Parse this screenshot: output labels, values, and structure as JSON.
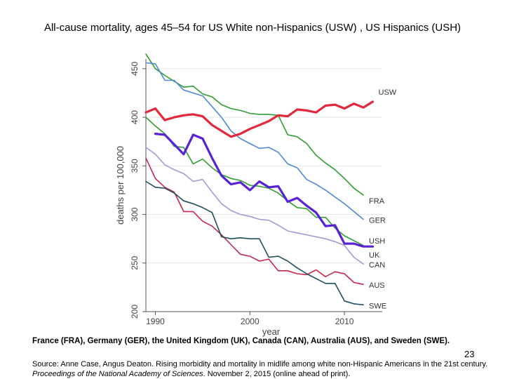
{
  "title": "All-cause mortality, ages 45–54 for US White non-Hispanics (USW) , US Hispanics (USH)",
  "caption": "France (FRA), Germany (GER), the United Kingdom (UK), Canada (CAN), Australia (AUS), and Sweden (SWE).",
  "page_number": "23",
  "source": {
    "prefix": "Source: Anne Case, Angus Deaton. Rising morbidity and mortality in midlife among white non-Hispanic Americans in the 21st century. ",
    "journal": "Proceedings of the National Academy of Sciences",
    "suffix": ". November 2, 2015 (online ahead of print)."
  },
  "chart_data": {
    "type": "line",
    "xlabel": "year",
    "ylabel": "deaths per 100,000",
    "xlim": [
      1989,
      2014
    ],
    "ylim": [
      200,
      460
    ],
    "x_ticks": [
      "1990",
      "2000",
      "2010"
    ],
    "y_ticks": [
      "200",
      "250",
      "300",
      "350",
      "400",
      "450"
    ],
    "grid": true,
    "series": [
      {
        "name": "USW",
        "color": "#e3283c",
        "width": 3.2,
        "x": [
          1989,
          1990,
          1991,
          1992,
          1993,
          1994,
          1995,
          1996,
          1997,
          1998,
          1999,
          2000,
          2001,
          2002,
          2003,
          2004,
          2005,
          2006,
          2007,
          2008,
          2009,
          2010,
          2011,
          2012,
          2013
        ],
        "y": [
          405,
          409,
          397,
          400,
          402,
          403,
          401,
          392,
          386,
          380,
          383,
          388,
          392,
          396,
          402,
          401,
          408,
          407,
          405,
          412,
          413,
          409,
          414,
          410,
          416
        ]
      },
      {
        "name": "USH",
        "color": "#5a22d6",
        "width": 3.2,
        "x": [
          1990,
          1991,
          1992,
          1993,
          1994,
          1995,
          1996,
          1997,
          1998,
          1999,
          2000,
          2001,
          2002,
          2003,
          2004,
          2005,
          2006,
          2007,
          2008,
          2009,
          2010,
          2011,
          2012,
          2013
        ],
        "y": [
          383,
          382,
          372,
          362,
          382,
          378,
          358,
          340,
          331,
          333,
          325,
          334,
          328,
          329,
          313,
          317,
          309,
          302,
          288,
          289,
          270,
          270,
          267,
          267
        ]
      },
      {
        "name": "FRA",
        "color": "#2e9e2e",
        "width": 1.6,
        "x": [
          1989,
          1990,
          1991,
          1992,
          1993,
          1994,
          1995,
          1996,
          1997,
          1998,
          1999,
          2000,
          2001,
          2002,
          2003,
          2004,
          2005,
          2006,
          2007,
          2008,
          2009,
          2010,
          2011,
          2012
        ],
        "y": [
          465,
          450,
          443,
          437,
          431,
          432,
          424,
          421,
          413,
          409,
          407,
          404,
          403,
          403,
          402,
          382,
          380,
          373,
          361,
          353,
          346,
          337,
          327,
          320
        ]
      },
      {
        "name": "GER",
        "color": "#4c8ad8",
        "width": 1.6,
        "x": [
          1989,
          1990,
          1991,
          1992,
          1993,
          1994,
          1995,
          1996,
          1997,
          1998,
          1999,
          2000,
          2001,
          2002,
          2003,
          2004,
          2005,
          2006,
          2007,
          2008,
          2009,
          2010,
          2011,
          2012
        ],
        "y": [
          456,
          455,
          438,
          438,
          428,
          425,
          422,
          411,
          400,
          386,
          378,
          373,
          368,
          369,
          364,
          352,
          348,
          336,
          331,
          325,
          318,
          311,
          303,
          295
        ]
      },
      {
        "name": "UK",
        "color": "#2e9e2e",
        "width": 1.6,
        "x": [
          1989,
          1990,
          1991,
          1992,
          1993,
          1994,
          1995,
          1996,
          1997,
          1998,
          1999,
          2000,
          2001,
          2002,
          2003,
          2004,
          2005,
          2006,
          2007,
          2008,
          2009,
          2010,
          2011,
          2012
        ],
        "y": [
          400,
          391,
          383,
          370,
          369,
          352,
          357,
          348,
          341,
          337,
          335,
          330,
          329,
          327,
          322,
          314,
          307,
          306,
          297,
          297,
          286,
          278,
          273,
          268
        ]
      },
      {
        "name": "CAN",
        "color": "#a49ad6",
        "width": 1.6,
        "x": [
          1989,
          1990,
          1991,
          1992,
          1993,
          1994,
          1995,
          1996,
          1997,
          1998,
          1999,
          2000,
          2001,
          2002,
          2003,
          2004,
          2005,
          2006,
          2007,
          2008,
          2009,
          2010,
          2011,
          2012
        ],
        "y": [
          369,
          362,
          351,
          346,
          342,
          334,
          336,
          323,
          311,
          304,
          300,
          298,
          295,
          294,
          289,
          283,
          281,
          279,
          277,
          275,
          272,
          268,
          256,
          249
        ]
      },
      {
        "name": "AUS",
        "color": "#c4284c",
        "width": 1.6,
        "x": [
          1989,
          1990,
          1991,
          1992,
          1993,
          1994,
          1995,
          1996,
          1997,
          1998,
          1999,
          2000,
          2001,
          2002,
          2003,
          2004,
          2005,
          2006,
          2007,
          2008,
          2009,
          2010,
          2011,
          2012
        ],
        "y": [
          358,
          337,
          328,
          323,
          303,
          303,
          293,
          288,
          279,
          269,
          259,
          257,
          252,
          254,
          242,
          242,
          239,
          238,
          243,
          236,
          241,
          239,
          230,
          228
        ]
      },
      {
        "name": "SWE",
        "color": "#1f4e5f",
        "width": 1.6,
        "x": [
          1989,
          1990,
          1991,
          1992,
          1993,
          1994,
          1995,
          1996,
          1997,
          1998,
          1999,
          2000,
          2001,
          2002,
          2003,
          2004,
          2005,
          2006,
          2007,
          2008,
          2009,
          2010,
          2011,
          2012
        ],
        "y": [
          334,
          328,
          327,
          322,
          314,
          311,
          307,
          302,
          277,
          275,
          276,
          275,
          275,
          256,
          257,
          252,
          245,
          239,
          234,
          229,
          229,
          211,
          208,
          207
        ]
      }
    ]
  }
}
